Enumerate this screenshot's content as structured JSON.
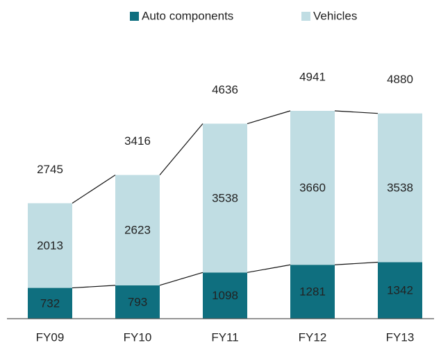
{
  "chart_data": {
    "type": "stacked_bar",
    "categories": [
      "FY09",
      "FY10",
      "FY11",
      "FY12",
      "FY13"
    ],
    "series": [
      {
        "name": "Auto components",
        "color": "#0f6f7f",
        "values": [
          732,
          793,
          1098,
          1281,
          1342
        ]
      },
      {
        "name": "Vehicles",
        "color": "#c0dde3",
        "values": [
          2013,
          2623,
          3538,
          3660,
          3538
        ]
      }
    ],
    "totals": [
      2745,
      3416,
      4636,
      4941,
      4880
    ],
    "legend": "top"
  }
}
